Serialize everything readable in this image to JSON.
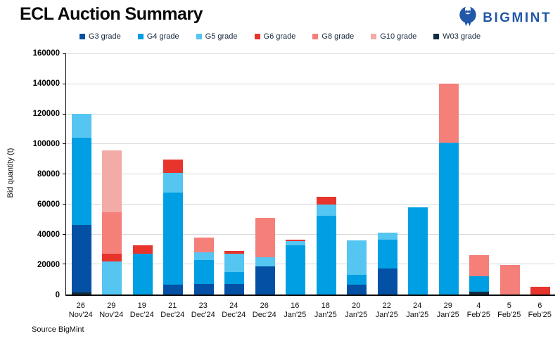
{
  "header": {
    "title": "ECL Auction Summary",
    "logo_text": "BIGMINT",
    "logo_color": "#2157A7"
  },
  "source_note": "Source BigMint",
  "chart_data": {
    "type": "bar",
    "stacked": true,
    "title": "ECL Auction Summary",
    "xlabel": "",
    "ylabel": "Bid quantity (t)",
    "ylim": [
      0,
      160000
    ],
    "ytick_step": 20000,
    "grid": true,
    "legend_position": "top-center",
    "gridline_color": "#D9D9D9",
    "grades": [
      {
        "label": "G3 grade",
        "color": "#0450A4"
      },
      {
        "label": "G4 grade",
        "color": "#009FE3"
      },
      {
        "label": "G5 grade",
        "color": "#55C5F1"
      },
      {
        "label": "G6 grade",
        "color": "#E7342C"
      },
      {
        "label": "G8 grade",
        "color": "#F48079"
      },
      {
        "label": "G10 grade",
        "color": "#F2ABA6"
      },
      {
        "label": "W03 grade",
        "color": "#122C40"
      }
    ],
    "bars": [
      {
        "day": "26",
        "month": "Nov'24",
        "segments": [
          [
            "W03",
            1500
          ],
          [
            "G3",
            44500
          ],
          [
            "G4",
            57500
          ],
          [
            "G5",
            16000
          ]
        ]
      },
      {
        "day": "29",
        "month": "Nov'24",
        "segments": [
          [
            "G5",
            22000
          ],
          [
            "G6",
            5000
          ],
          [
            "G8",
            27500
          ],
          [
            "G10",
            41000
          ]
        ]
      },
      {
        "day": "19",
        "month": "Dec'24",
        "segments": [
          [
            "G4",
            27000
          ],
          [
            "G6",
            5500
          ]
        ]
      },
      {
        "day": "21",
        "month": "Dec'24",
        "segments": [
          [
            "G3",
            6500
          ],
          [
            "G4",
            61000
          ],
          [
            "G5",
            13000
          ],
          [
            "G6",
            9000
          ]
        ]
      },
      {
        "day": "23",
        "month": "Dec'24",
        "segments": [
          [
            "G3",
            7000
          ],
          [
            "G4",
            16000
          ],
          [
            "G5",
            5000
          ],
          [
            "G8",
            9500
          ]
        ]
      },
      {
        "day": "24",
        "month": "Dec'24",
        "segments": [
          [
            "G3",
            7000
          ],
          [
            "G4",
            8000
          ],
          [
            "G5",
            12000
          ],
          [
            "G6",
            2000
          ]
        ]
      },
      {
        "day": "26",
        "month": "Dec'24",
        "segments": [
          [
            "G3",
            18500
          ],
          [
            "G5",
            6000
          ],
          [
            "G8",
            26000
          ]
        ]
      },
      {
        "day": "16",
        "month": "Jan'25",
        "segments": [
          [
            "G4",
            32500
          ],
          [
            "G5",
            3000
          ],
          [
            "G6",
            1000
          ]
        ]
      },
      {
        "day": "18",
        "month": "Jan'25",
        "segments": [
          [
            "G4",
            52000
          ],
          [
            "G5",
            7500
          ],
          [
            "G6",
            5000
          ]
        ]
      },
      {
        "day": "20",
        "month": "Jan'25",
        "segments": [
          [
            "G3",
            6500
          ],
          [
            "G4",
            6500
          ],
          [
            "G5",
            23000
          ]
        ]
      },
      {
        "day": "22",
        "month": "Jan'25",
        "segments": [
          [
            "G3",
            17000
          ],
          [
            "G4",
            19500
          ],
          [
            "G5",
            4500
          ]
        ]
      },
      {
        "day": "24",
        "month": "Jan'25",
        "segments": [
          [
            "G4",
            57500
          ]
        ]
      },
      {
        "day": "29",
        "month": "Jan'25",
        "segments": [
          [
            "G4",
            100500
          ],
          [
            "G8",
            39000
          ]
        ]
      },
      {
        "day": "4",
        "month": "Feb'25",
        "segments": [
          [
            "W03",
            2000
          ],
          [
            "G4",
            10000
          ],
          [
            "G8",
            14000
          ]
        ]
      },
      {
        "day": "5",
        "month": "Feb'25",
        "segments": [
          [
            "G8",
            19500
          ]
        ]
      },
      {
        "day": "6",
        "month": "Feb'25",
        "segments": [
          [
            "G6",
            5000
          ]
        ]
      }
    ]
  }
}
